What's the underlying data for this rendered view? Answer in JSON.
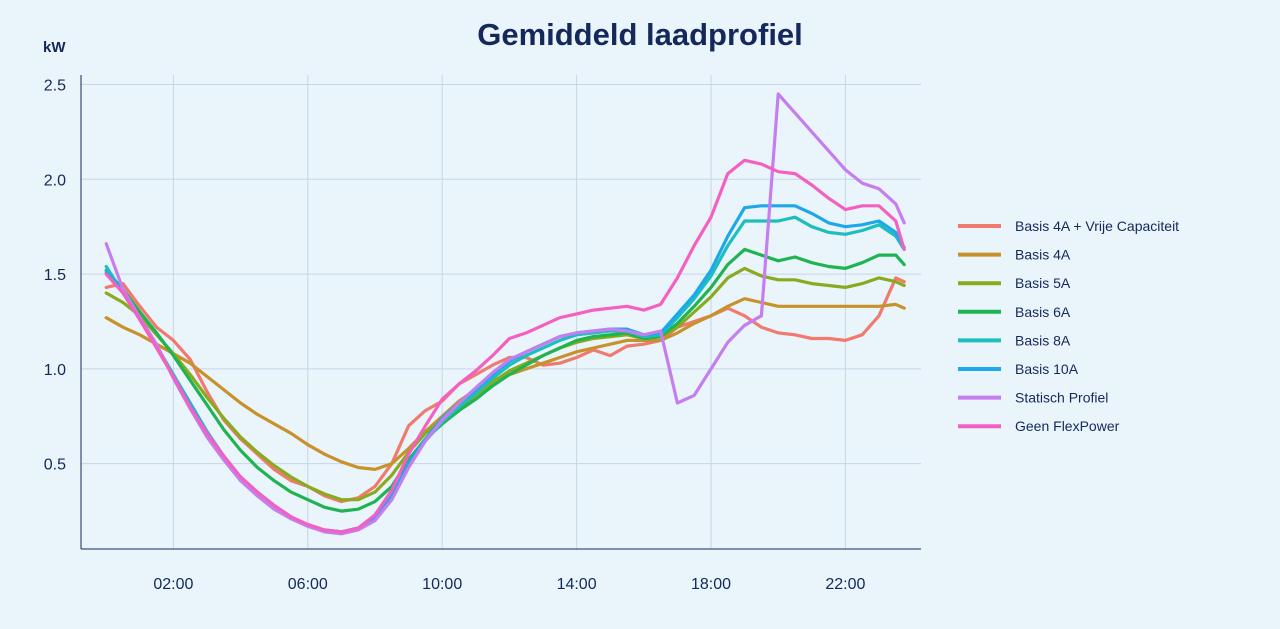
{
  "chart_data": {
    "type": "line",
    "title": "Gemiddeld laadprofiel",
    "ylabel": "kW",
    "xlabel": "",
    "xlim": [
      -0.75,
      24.25
    ],
    "ylim": [
      0.05,
      2.55
    ],
    "x_ticks": [
      2,
      6,
      10,
      14,
      18,
      22
    ],
    "x_tick_labels": [
      "02:00",
      "06:00",
      "10:00",
      "14:00",
      "18:00",
      "22:00"
    ],
    "y_ticks": [
      0.5,
      1.0,
      1.5,
      2.0,
      2.5
    ],
    "y_tick_labels": [
      "0.5",
      "1.0",
      "1.5",
      "2.0",
      "2.5"
    ],
    "grid": true,
    "legend_position": "right",
    "x": [
      0,
      0.5,
      1,
      1.5,
      2,
      2.5,
      3,
      3.5,
      4,
      4.5,
      5,
      5.5,
      6,
      6.5,
      7,
      7.5,
      8,
      8.5,
      9,
      9.5,
      10,
      10.5,
      11,
      11.5,
      12,
      12.5,
      13,
      13.5,
      14,
      14.5,
      15,
      15.5,
      16,
      16.5,
      17,
      17.5,
      18,
      18.5,
      19,
      19.5,
      20,
      20.5,
      21,
      21.5,
      22,
      22.5,
      23,
      23.5,
      23.75
    ],
    "series": [
      {
        "name": "Basis 4A + Vrije Capaciteit",
        "color": "#f07a6e",
        "values": [
          1.43,
          1.45,
          1.33,
          1.22,
          1.15,
          1.05,
          0.88,
          0.73,
          0.63,
          0.55,
          0.47,
          0.41,
          0.38,
          0.33,
          0.3,
          0.32,
          0.38,
          0.5,
          0.7,
          0.78,
          0.83,
          0.92,
          0.97,
          1.02,
          1.06,
          1.06,
          1.02,
          1.03,
          1.06,
          1.1,
          1.07,
          1.12,
          1.13,
          1.15,
          1.22,
          1.25,
          1.28,
          1.32,
          1.28,
          1.22,
          1.19,
          1.18,
          1.16,
          1.16,
          1.15,
          1.18,
          1.28,
          1.48,
          1.46
        ]
      },
      {
        "name": "Basis 4A",
        "color": "#c8922a",
        "values": [
          1.27,
          1.22,
          1.18,
          1.13,
          1.08,
          1.03,
          0.96,
          0.89,
          0.82,
          0.76,
          0.71,
          0.66,
          0.6,
          0.55,
          0.51,
          0.48,
          0.47,
          0.5,
          0.58,
          0.67,
          0.75,
          0.83,
          0.89,
          0.94,
          0.97,
          1.0,
          1.03,
          1.06,
          1.09,
          1.11,
          1.13,
          1.15,
          1.15,
          1.15,
          1.19,
          1.24,
          1.28,
          1.33,
          1.37,
          1.35,
          1.33,
          1.33,
          1.33,
          1.33,
          1.33,
          1.33,
          1.33,
          1.34,
          1.32
        ]
      },
      {
        "name": "Basis 5A",
        "color": "#8aaa1e",
        "values": [
          1.4,
          1.35,
          1.28,
          1.18,
          1.08,
          0.97,
          0.85,
          0.74,
          0.64,
          0.56,
          0.49,
          0.43,
          0.38,
          0.34,
          0.31,
          0.31,
          0.35,
          0.44,
          0.56,
          0.66,
          0.73,
          0.79,
          0.86,
          0.93,
          0.99,
          1.03,
          1.07,
          1.11,
          1.14,
          1.16,
          1.17,
          1.18,
          1.16,
          1.17,
          1.22,
          1.3,
          1.38,
          1.48,
          1.53,
          1.49,
          1.47,
          1.47,
          1.45,
          1.44,
          1.43,
          1.45,
          1.48,
          1.46,
          1.44
        ]
      },
      {
        "name": "Basis 6A",
        "color": "#1fb352",
        "values": [
          1.52,
          1.42,
          1.3,
          1.19,
          1.07,
          0.94,
          0.81,
          0.68,
          0.57,
          0.48,
          0.41,
          0.35,
          0.31,
          0.27,
          0.25,
          0.26,
          0.3,
          0.38,
          0.52,
          0.63,
          0.71,
          0.78,
          0.84,
          0.91,
          0.97,
          1.02,
          1.07,
          1.11,
          1.15,
          1.17,
          1.18,
          1.19,
          1.16,
          1.17,
          1.24,
          1.33,
          1.43,
          1.55,
          1.63,
          1.6,
          1.57,
          1.59,
          1.56,
          1.54,
          1.53,
          1.56,
          1.6,
          1.6,
          1.55
        ]
      },
      {
        "name": "Basis 8A",
        "color": "#1cbfbd",
        "values": [
          1.54,
          1.4,
          1.26,
          1.12,
          0.97,
          0.82,
          0.67,
          0.54,
          0.43,
          0.35,
          0.28,
          0.22,
          0.17,
          0.15,
          0.14,
          0.16,
          0.21,
          0.32,
          0.49,
          0.62,
          0.72,
          0.8,
          0.87,
          0.95,
          1.02,
          1.07,
          1.11,
          1.15,
          1.18,
          1.19,
          1.2,
          1.2,
          1.17,
          1.18,
          1.27,
          1.37,
          1.49,
          1.65,
          1.78,
          1.78,
          1.78,
          1.8,
          1.75,
          1.72,
          1.71,
          1.73,
          1.76,
          1.7,
          1.63
        ]
      },
      {
        "name": "Basis 10A",
        "color": "#1ea8ec",
        "values": [
          1.51,
          1.41,
          1.27,
          1.12,
          0.96,
          0.81,
          0.66,
          0.53,
          0.42,
          0.34,
          0.27,
          0.21,
          0.17,
          0.15,
          0.14,
          0.16,
          0.21,
          0.33,
          0.5,
          0.63,
          0.74,
          0.82,
          0.89,
          0.97,
          1.04,
          1.09,
          1.13,
          1.17,
          1.19,
          1.2,
          1.21,
          1.21,
          1.18,
          1.19,
          1.29,
          1.39,
          1.52,
          1.7,
          1.85,
          1.86,
          1.86,
          1.86,
          1.82,
          1.77,
          1.75,
          1.76,
          1.78,
          1.72,
          1.64
        ]
      },
      {
        "name": "Statisch Profiel",
        "color": "#c47ef0",
        "values": [
          1.66,
          1.42,
          1.27,
          1.13,
          0.95,
          0.79,
          0.64,
          0.52,
          0.41,
          0.33,
          0.26,
          0.21,
          0.17,
          0.14,
          0.13,
          0.15,
          0.2,
          0.31,
          0.48,
          0.62,
          0.73,
          0.82,
          0.9,
          0.98,
          1.05,
          1.09,
          1.13,
          1.17,
          1.19,
          1.2,
          1.21,
          1.2,
          1.18,
          1.2,
          0.82,
          0.86,
          1.0,
          1.14,
          1.23,
          1.28,
          2.45,
          2.35,
          2.25,
          2.15,
          2.05,
          1.98,
          1.95,
          1.87,
          1.77
        ]
      },
      {
        "name": "Geen FlexPower",
        "color": "#f460c1",
        "values": [
          1.5,
          1.4,
          1.26,
          1.11,
          0.96,
          0.8,
          0.66,
          0.54,
          0.43,
          0.35,
          0.28,
          0.22,
          0.18,
          0.15,
          0.14,
          0.16,
          0.23,
          0.36,
          0.55,
          0.7,
          0.84,
          0.92,
          0.99,
          1.07,
          1.16,
          1.19,
          1.23,
          1.27,
          1.29,
          1.31,
          1.32,
          1.33,
          1.31,
          1.34,
          1.48,
          1.65,
          1.8,
          2.03,
          2.1,
          2.08,
          2.04,
          2.03,
          1.97,
          1.9,
          1.84,
          1.86,
          1.86,
          1.78,
          1.63
        ]
      }
    ]
  }
}
